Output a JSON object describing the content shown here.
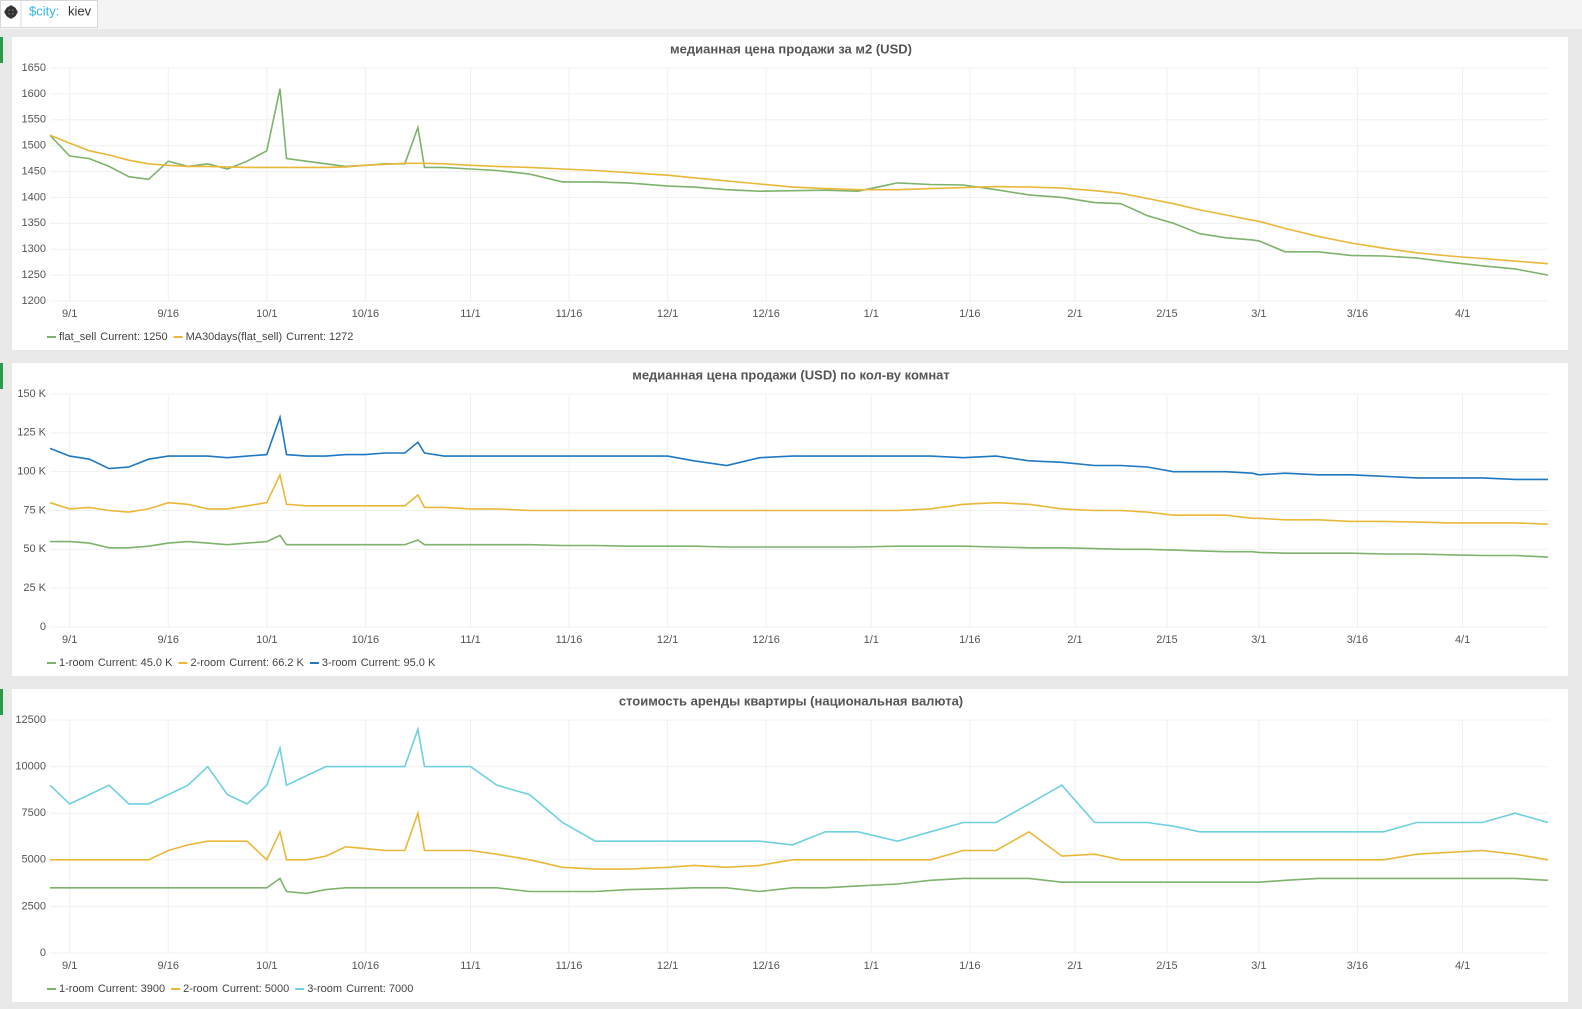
{
  "toolbar": {
    "label": "$city:",
    "value": "kiev"
  },
  "chart_data": [
    {
      "type": "line",
      "title": "медианная цена продажи за м2 (USD)",
      "grid": true,
      "x": [
        "8/29",
        "9/1",
        "9/4",
        "9/7",
        "9/10",
        "9/13",
        "9/16",
        "9/19",
        "9/22",
        "9/25",
        "9/28",
        "10/1",
        "10/3",
        "10/4",
        "10/7",
        "10/10",
        "10/13",
        "10/16",
        "10/19",
        "10/22",
        "10/24",
        "10/25",
        "10/28",
        "11/1",
        "11/5",
        "11/10",
        "11/15",
        "11/20",
        "11/25",
        "12/1",
        "12/5",
        "12/10",
        "12/15",
        "12/20",
        "12/25",
        "12/30",
        "1/5",
        "1/10",
        "1/15",
        "1/20",
        "1/25",
        "1/30",
        "2/4",
        "2/8",
        "2/12",
        "2/16",
        "2/20",
        "2/24",
        "2/28",
        "3/1",
        "3/5",
        "3/10",
        "3/15",
        "3/20",
        "3/25",
        "3/30",
        "4/4",
        "4/9",
        "4/14"
      ],
      "xlim": [
        "8/29",
        "4/14"
      ],
      "xticks": [
        "9/1",
        "9/16",
        "10/1",
        "10/16",
        "11/1",
        "11/16",
        "12/1",
        "12/16",
        "1/1",
        "1/16",
        "2/1",
        "2/15",
        "3/1",
        "3/16",
        "4/1"
      ],
      "ylim": [
        1200,
        1650
      ],
      "yticks": [
        1200,
        1250,
        1300,
        1350,
        1400,
        1450,
        1500,
        1550,
        1600,
        1650
      ],
      "series": [
        {
          "name": "flat_sell",
          "color": "#7eb26d",
          "current": "Current: 1250",
          "values": [
            1520,
            1480,
            1475,
            1460,
            1440,
            1435,
            1470,
            1460,
            1465,
            1455,
            1470,
            1490,
            1610,
            1475,
            1470,
            1465,
            1460,
            1462,
            1465,
            1465,
            1535,
            1458,
            1458,
            1455,
            1452,
            1445,
            1430,
            1430,
            1428,
            1422,
            1420,
            1415,
            1412,
            1413,
            1414,
            1412,
            1428,
            1425,
            1424,
            1415,
            1405,
            1400,
            1390,
            1388,
            1365,
            1350,
            1330,
            1322,
            1318,
            1316,
            1295,
            1295,
            1288,
            1287,
            1283,
            1275,
            1268,
            1262,
            1250
          ]
        },
        {
          "name": "MA30days(flat_sell)",
          "color": "#eab839",
          "current": "Current: 1272",
          "values": [
            1520,
            1505,
            1490,
            1482,
            1472,
            1465,
            1462,
            1460,
            1460,
            1459,
            1458,
            1458,
            1458,
            1458,
            1458,
            1458,
            1459,
            1462,
            1464,
            1466,
            1466,
            1466,
            1465,
            1462,
            1460,
            1458,
            1455,
            1452,
            1448,
            1443,
            1438,
            1432,
            1426,
            1420,
            1417,
            1415,
            1415,
            1417,
            1419,
            1421,
            1420,
            1418,
            1413,
            1408,
            1398,
            1388,
            1376,
            1366,
            1356,
            1354,
            1340,
            1325,
            1312,
            1302,
            1293,
            1287,
            1282,
            1277,
            1272
          ]
        }
      ]
    },
    {
      "type": "line",
      "title": "медианная цена продажи (USD) по кол-ву комнат",
      "grid": true,
      "x": [
        "8/29",
        "9/1",
        "9/4",
        "9/7",
        "9/10",
        "9/13",
        "9/16",
        "9/19",
        "9/22",
        "9/25",
        "9/28",
        "10/1",
        "10/3",
        "10/4",
        "10/7",
        "10/10",
        "10/13",
        "10/16",
        "10/19",
        "10/22",
        "10/24",
        "10/25",
        "10/28",
        "11/1",
        "11/5",
        "11/10",
        "11/15",
        "11/20",
        "11/25",
        "12/1",
        "12/5",
        "12/10",
        "12/15",
        "12/20",
        "12/25",
        "12/30",
        "1/5",
        "1/10",
        "1/15",
        "1/20",
        "1/25",
        "1/30",
        "2/4",
        "2/8",
        "2/12",
        "2/16",
        "2/20",
        "2/24",
        "2/28",
        "3/1",
        "3/5",
        "3/10",
        "3/15",
        "3/20",
        "3/25",
        "3/30",
        "4/4",
        "4/9",
        "4/14"
      ],
      "xlim": [
        "8/29",
        "4/14"
      ],
      "xticks": [
        "9/1",
        "9/16",
        "10/1",
        "10/16",
        "11/1",
        "11/16",
        "12/1",
        "12/16",
        "1/1",
        "1/16",
        "2/1",
        "2/15",
        "3/1",
        "3/16",
        "4/1"
      ],
      "ylim": [
        0,
        150000
      ],
      "yticks": [
        0,
        {
          "value": 25000,
          "label": "25 K"
        },
        {
          "value": 50000,
          "label": "50 K"
        },
        {
          "value": 75000,
          "label": "75 K"
        },
        {
          "value": 100000,
          "label": "100 K"
        },
        {
          "value": 125000,
          "label": "125 K"
        },
        {
          "value": 150000,
          "label": "150 K"
        }
      ],
      "series": [
        {
          "name": "1-room",
          "color": "#7eb26d",
          "current": "Current: 45.0 K",
          "values": [
            55000,
            55000,
            54000,
            51000,
            51000,
            52000,
            54000,
            55000,
            54000,
            53000,
            54000,
            55000,
            59000,
            53000,
            53000,
            53000,
            53000,
            53000,
            53000,
            53000,
            56000,
            53000,
            53000,
            53000,
            53000,
            53000,
            52500,
            52500,
            52000,
            52000,
            52000,
            51500,
            51500,
            51500,
            51500,
            51500,
            52000,
            52000,
            52000,
            51500,
            51000,
            51000,
            50500,
            50000,
            50000,
            49500,
            49000,
            48500,
            48500,
            48000,
            47500,
            47500,
            47500,
            47000,
            47000,
            46500,
            46000,
            46000,
            45000
          ]
        },
        {
          "name": "2-room",
          "color": "#eab839",
          "current": "Current: 66.2 K",
          "values": [
            80000,
            76000,
            77000,
            75000,
            74000,
            76000,
            80000,
            79000,
            76000,
            76000,
            78000,
            80000,
            98000,
            79000,
            78000,
            78000,
            78000,
            78000,
            78000,
            78000,
            85000,
            77000,
            77000,
            76000,
            76000,
            75000,
            75000,
            75000,
            75000,
            75000,
            75000,
            75000,
            75000,
            75000,
            75000,
            75000,
            75000,
            76000,
            79000,
            80000,
            79000,
            76000,
            75000,
            75000,
            74000,
            72000,
            72000,
            72000,
            70000,
            70000,
            69000,
            69000,
            68000,
            68000,
            67500,
            67000,
            67000,
            67000,
            66200
          ]
        },
        {
          "name": "3-room",
          "color": "#1f78c1",
          "current": "Current: 95.0 K",
          "values": [
            115000,
            110000,
            108000,
            102000,
            103000,
            108000,
            110000,
            110000,
            110000,
            109000,
            110000,
            111000,
            135000,
            111000,
            110000,
            110000,
            111000,
            111000,
            112000,
            112000,
            119000,
            112000,
            110000,
            110000,
            110000,
            110000,
            110000,
            110000,
            110000,
            110000,
            107000,
            104000,
            109000,
            110000,
            110000,
            110000,
            110000,
            110000,
            109000,
            110000,
            107000,
            106000,
            104000,
            104000,
            103000,
            100000,
            100000,
            100000,
            99000,
            98000,
            99000,
            98000,
            98000,
            97000,
            96000,
            96000,
            96000,
            95000,
            95000
          ]
        }
      ]
    },
    {
      "type": "line",
      "title": "стоимость аренды квартиры (национальная валюта)",
      "grid": true,
      "x": [
        "8/29",
        "9/1",
        "9/4",
        "9/7",
        "9/10",
        "9/13",
        "9/16",
        "9/19",
        "9/22",
        "9/25",
        "9/28",
        "10/1",
        "10/3",
        "10/4",
        "10/7",
        "10/10",
        "10/13",
        "10/16",
        "10/19",
        "10/22",
        "10/24",
        "10/25",
        "10/28",
        "11/1",
        "11/5",
        "11/10",
        "11/15",
        "11/20",
        "11/25",
        "12/1",
        "12/5",
        "12/10",
        "12/15",
        "12/20",
        "12/25",
        "12/30",
        "1/5",
        "1/10",
        "1/15",
        "1/20",
        "1/25",
        "1/30",
        "2/4",
        "2/8",
        "2/12",
        "2/16",
        "2/20",
        "2/24",
        "2/28",
        "3/1",
        "3/5",
        "3/10",
        "3/15",
        "3/20",
        "3/25",
        "3/30",
        "4/4",
        "4/9",
        "4/14"
      ],
      "xlim": [
        "8/29",
        "4/14"
      ],
      "xticks": [
        "9/1",
        "9/16",
        "10/1",
        "10/16",
        "11/1",
        "11/16",
        "12/1",
        "12/16",
        "1/1",
        "1/16",
        "2/1",
        "2/15",
        "3/1",
        "3/16",
        "4/1"
      ],
      "ylim": [
        0,
        12500
      ],
      "yticks": [
        0,
        2500,
        5000,
        7500,
        10000,
        12500
      ],
      "series": [
        {
          "name": "1-room",
          "color": "#7eb26d",
          "current": "Current: 3900",
          "values": [
            3500,
            3500,
            3500,
            3500,
            3500,
            3500,
            3500,
            3500,
            3500,
            3500,
            3500,
            3500,
            4000,
            3300,
            3200,
            3400,
            3500,
            3500,
            3500,
            3500,
            3500,
            3500,
            3500,
            3500,
            3500,
            3300,
            3300,
            3300,
            3400,
            3450,
            3500,
            3500,
            3300,
            3500,
            3500,
            3600,
            3700,
            3900,
            4000,
            4000,
            4000,
            3800,
            3800,
            3800,
            3800,
            3800,
            3800,
            3800,
            3800,
            3800,
            3900,
            4000,
            4000,
            4000,
            4000,
            4000,
            4000,
            4000,
            3900
          ]
        },
        {
          "name": "2-room",
          "color": "#eab839",
          "current": "Current: 5000",
          "values": [
            5000,
            5000,
            5000,
            5000,
            5000,
            5000,
            5500,
            5800,
            6000,
            6000,
            6000,
            5000,
            6500,
            5000,
            5000,
            5200,
            5700,
            5600,
            5500,
            5500,
            7500,
            5500,
            5500,
            5500,
            5300,
            5000,
            4600,
            4500,
            4500,
            4600,
            4700,
            4600,
            4700,
            5000,
            5000,
            5000,
            5000,
            5000,
            5500,
            5500,
            6500,
            5200,
            5300,
            5000,
            5000,
            5000,
            5000,
            5000,
            5000,
            5000,
            5000,
            5000,
            5000,
            5000,
            5300,
            5400,
            5500,
            5300,
            5000
          ]
        },
        {
          "name": "3-room",
          "color": "#6ed0e0",
          "current": "Current: 7000",
          "values": [
            9000,
            8000,
            8500,
            9000,
            8000,
            8000,
            8500,
            9000,
            10000,
            8500,
            8000,
            9000,
            11000,
            9000,
            9500,
            10000,
            10000,
            10000,
            10000,
            10000,
            12000,
            10000,
            10000,
            10000,
            9000,
            8500,
            7000,
            6000,
            6000,
            6000,
            6000,
            6000,
            6000,
            5800,
            6500,
            6500,
            6000,
            6500,
            7000,
            7000,
            8000,
            9000,
            7000,
            7000,
            7000,
            6800,
            6500,
            6500,
            6500,
            6500,
            6500,
            6500,
            6500,
            6500,
            7000,
            7000,
            7000,
            7500,
            7000
          ]
        }
      ]
    }
  ]
}
